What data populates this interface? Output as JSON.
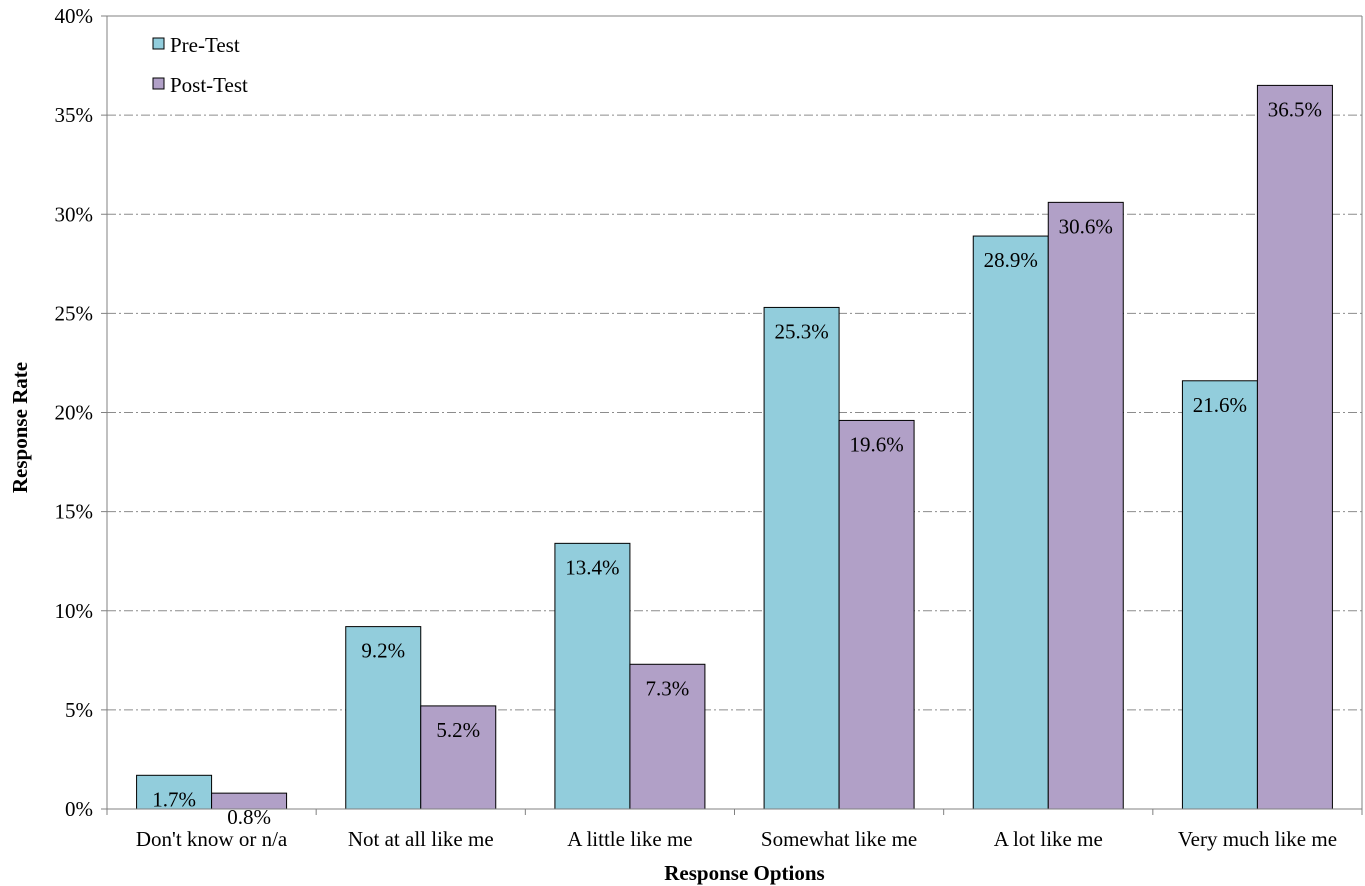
{
  "chart_data": {
    "type": "bar",
    "title": "",
    "xlabel": "Response Options",
    "ylabel": "Response Rate",
    "categories": [
      "Don't know or n/a",
      "Not at all like me",
      "A little like me",
      "Somewhat like me",
      "A lot like me",
      "Very much like me"
    ],
    "series": [
      {
        "name": "Pre-Test",
        "color": "#92CDDC",
        "values": [
          1.7,
          9.2,
          13.4,
          25.3,
          28.9,
          21.6
        ],
        "labels": [
          "1.7%",
          "9.2%",
          "13.4%",
          "25.3%",
          "28.9%",
          "21.6%"
        ]
      },
      {
        "name": "Post-Test",
        "color": "#B1A0C7",
        "values": [
          0.8,
          5.2,
          7.3,
          19.6,
          30.6,
          36.5
        ],
        "labels": [
          "0.8%",
          "5.2%",
          "7.3%",
          "19.6%",
          "30.6%",
          "36.5%"
        ]
      }
    ],
    "ylim": [
      0,
      40
    ],
    "yticks": [
      0,
      5,
      10,
      15,
      20,
      25,
      30,
      35,
      40
    ],
    "ytick_labels": [
      "0%",
      "5%",
      "10%",
      "15%",
      "20%",
      "25%",
      "30%",
      "35%",
      "40%"
    ],
    "grid": true,
    "legend_position": "top-left"
  }
}
